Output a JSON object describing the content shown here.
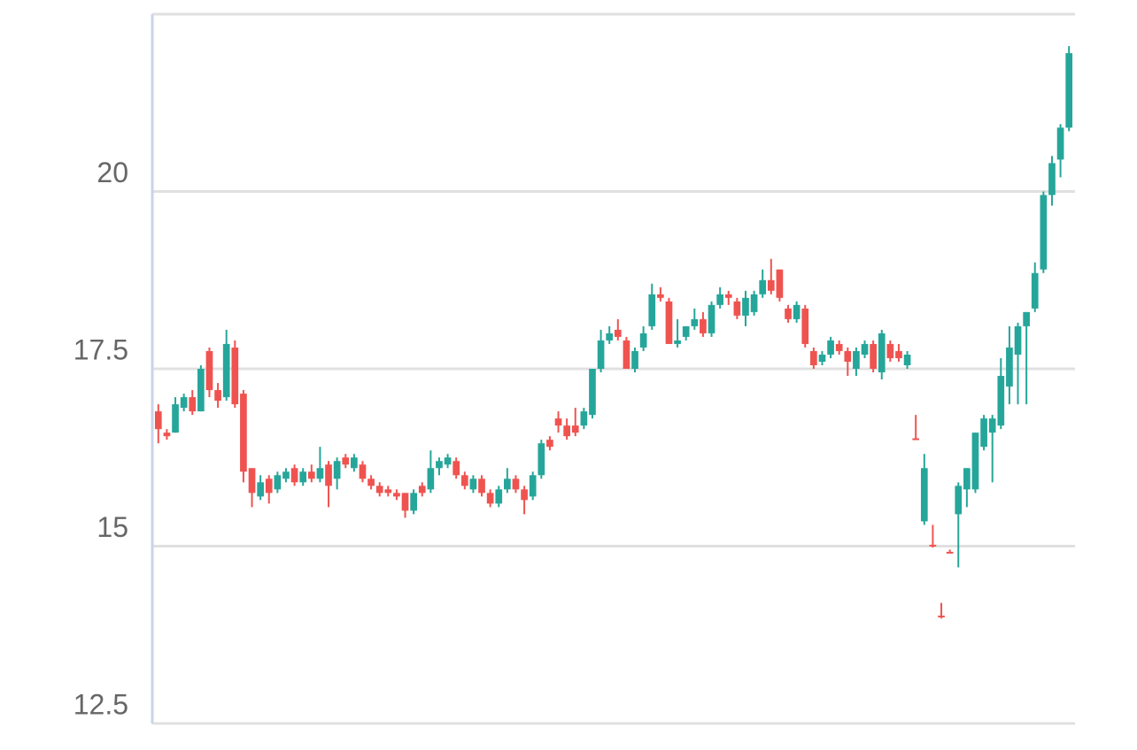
{
  "chart_data": {
    "type": "candlestick",
    "up_color": "#26a69a",
    "down_color": "#ef5350",
    "ylim": [
      12.5,
      22.5
    ],
    "yticks": [
      12.5,
      15,
      17.5,
      20
    ],
    "grid": true,
    "open": [
      16.9,
      16.6,
      16.6,
      16.95,
      17.1,
      16.9,
      17.75,
      17.2,
      17.1,
      17.8,
      17.15,
      16.1,
      15.7,
      15.95,
      15.8,
      15.95,
      16.1,
      15.9,
      16.05,
      15.95,
      16.15,
      15.95,
      16.25,
      16.1,
      16.15,
      15.95,
      15.85,
      15.8,
      15.75,
      15.75,
      15.5,
      15.85,
      15.8,
      16.1,
      16.15,
      16.2,
      16.0,
      15.8,
      15.95,
      15.75,
      15.6,
      15.8,
      15.95,
      15.8,
      15.7,
      16.0,
      16.5,
      16.8,
      16.7,
      16.7,
      16.7,
      16.85,
      17.5,
      17.9,
      18.05,
      17.9,
      17.5,
      17.8,
      18.1,
      18.55,
      18.45,
      17.85,
      17.95,
      18.1,
      18.2,
      18.0,
      18.4,
      18.55,
      18.45,
      18.25,
      18.3,
      18.55,
      18.75,
      18.9,
      18.35,
      18.2,
      18.35,
      17.75,
      17.6,
      17.7,
      17.85,
      17.75,
      17.5,
      17.7,
      17.85,
      17.45,
      17.85,
      17.75,
      17.55,
      16.52,
      15.35,
      15.02,
      14.02,
      14.92,
      15.45,
      15.8,
      15.8,
      16.4,
      16.6,
      16.7,
      17.25,
      17.7,
      18.1,
      18.35,
      18.9,
      19.95,
      20.45,
      20.9
    ],
    "high": [
      17.0,
      16.65,
      17.1,
      17.15,
      17.2,
      17.55,
      17.8,
      17.3,
      18.05,
      17.9,
      17.2,
      16.1,
      16.0,
      16.0,
      16.05,
      16.1,
      16.15,
      16.1,
      16.15,
      16.4,
      16.2,
      16.25,
      16.3,
      16.3,
      16.2,
      16.0,
      15.9,
      15.85,
      15.8,
      15.75,
      15.8,
      15.9,
      16.35,
      16.25,
      16.3,
      16.25,
      16.05,
      16.0,
      16.0,
      15.8,
      15.85,
      16.1,
      16.0,
      15.85,
      16.05,
      16.5,
      16.55,
      16.9,
      16.8,
      16.95,
      16.95,
      17.5,
      18.05,
      18.1,
      18.2,
      17.95,
      17.8,
      18.1,
      18.7,
      18.65,
      18.5,
      18.2,
      18.1,
      18.35,
      18.3,
      18.45,
      18.65,
      18.6,
      18.5,
      18.6,
      18.6,
      18.9,
      19.05,
      18.9,
      18.4,
      18.45,
      18.4,
      17.8,
      17.75,
      17.95,
      17.9,
      17.8,
      17.8,
      17.9,
      17.9,
      18.05,
      17.9,
      17.85,
      17.75,
      16.85,
      16.3,
      15.3,
      14.2,
      14.95,
      15.9,
      16.1,
      16.6,
      16.85,
      16.85,
      17.65,
      18.1,
      18.15,
      18.3,
      19.0,
      20.0,
      20.5,
      20.95,
      22.05
    ],
    "low": [
      16.45,
      16.5,
      16.6,
      16.9,
      16.85,
      16.9,
      17.1,
      16.95,
      17.05,
      16.95,
      15.9,
      15.55,
      15.65,
      15.6,
      15.75,
      15.9,
      15.85,
      15.85,
      15.9,
      15.9,
      15.55,
      15.8,
      16.1,
      16.05,
      15.9,
      15.8,
      15.7,
      15.7,
      15.65,
      15.4,
      15.45,
      15.7,
      15.75,
      16.0,
      16.1,
      15.95,
      15.8,
      15.75,
      15.7,
      15.55,
      15.55,
      15.75,
      15.75,
      15.45,
      15.65,
      15.95,
      16.35,
      16.6,
      16.5,
      16.55,
      16.65,
      16.8,
      17.45,
      17.85,
      17.9,
      17.5,
      17.45,
      17.75,
      18.05,
      18.45,
      17.85,
      17.8,
      17.9,
      18.05,
      17.95,
      17.95,
      18.35,
      18.4,
      18.2,
      18.1,
      18.25,
      18.5,
      18.55,
      18.45,
      18.15,
      18.15,
      17.8,
      17.5,
      17.55,
      17.65,
      17.7,
      17.4,
      17.4,
      17.65,
      17.45,
      17.35,
      17.6,
      17.6,
      17.5,
      16.5,
      15.3,
      14.98,
      13.98,
      14.9,
      14.7,
      15.55,
      15.75,
      16.35,
      15.9,
      16.65,
      17.0,
      17.0,
      17.0,
      18.3,
      18.85,
      19.8,
      20.2,
      20.85
    ],
    "close": [
      16.65,
      16.55,
      17.0,
      17.1,
      16.9,
      17.5,
      17.2,
      17.05,
      17.85,
      17.0,
      16.05,
      15.75,
      15.9,
      15.75,
      16.0,
      16.05,
      15.9,
      16.05,
      15.95,
      16.1,
      15.85,
      16.2,
      16.15,
      16.25,
      15.95,
      15.85,
      15.75,
      15.75,
      15.7,
      15.5,
      15.75,
      15.75,
      16.1,
      16.2,
      16.25,
      16.0,
      15.85,
      15.95,
      15.75,
      15.6,
      15.8,
      15.95,
      15.8,
      15.65,
      16.0,
      16.45,
      16.4,
      16.7,
      16.55,
      16.6,
      16.9,
      17.5,
      17.9,
      18.0,
      17.95,
      17.5,
      17.75,
      18.0,
      18.55,
      18.5,
      17.85,
      17.9,
      18.1,
      18.2,
      18.0,
      18.4,
      18.55,
      18.5,
      18.25,
      18.5,
      18.55,
      18.75,
      18.6,
      18.5,
      18.2,
      18.4,
      17.85,
      17.55,
      17.7,
      17.9,
      17.75,
      17.6,
      17.75,
      17.85,
      17.5,
      18.0,
      17.65,
      17.65,
      17.7,
      16.5,
      16.1,
      15.0,
      14.0,
      14.9,
      15.85,
      16.1,
      16.6,
      16.8,
      16.8,
      17.4,
      17.8,
      18.1,
      18.3,
      18.85,
      19.95,
      20.4,
      20.9,
      21.95
    ]
  }
}
